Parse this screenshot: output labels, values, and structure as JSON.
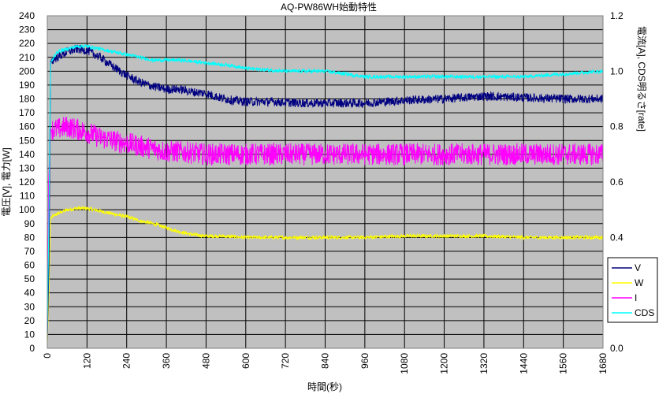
{
  "chart_data": {
    "type": "line",
    "title": "AQ-PW86WH始動特性",
    "xlabel": "時間(秒)",
    "ylabel_left": "電圧[V], 電力[W]",
    "ylabel_right": "電流[A], CDS明るさ[rate]",
    "xlim": [
      0,
      1680
    ],
    "xticks": [
      0,
      120,
      240,
      360,
      480,
      600,
      720,
      840,
      960,
      1080,
      1200,
      1320,
      1440,
      1560,
      1680
    ],
    "ylim_left": [
      0,
      240
    ],
    "yticks_left": [
      0,
      10,
      20,
      30,
      40,
      50,
      60,
      70,
      80,
      90,
      100,
      110,
      120,
      130,
      140,
      150,
      160,
      170,
      180,
      190,
      200,
      210,
      220,
      230,
      240
    ],
    "ylim_right": [
      0,
      1.2
    ],
    "yticks_right": [
      "0.0",
      "0.2",
      "0.4",
      "0.6",
      "0.8",
      "1.0",
      "1.2"
    ],
    "grid": true,
    "legend_position": "right",
    "plot_background": "#c0c0c0",
    "series": [
      {
        "name": "V",
        "axis": "left",
        "color": "#000080",
        "noise": 2,
        "points": [
          [
            0,
            5
          ],
          [
            5,
            60
          ],
          [
            10,
            207
          ],
          [
            30,
            210
          ],
          [
            60,
            214
          ],
          [
            90,
            216
          ],
          [
            120,
            215
          ],
          [
            160,
            210
          ],
          [
            200,
            203
          ],
          [
            240,
            197
          ],
          [
            280,
            192
          ],
          [
            320,
            189
          ],
          [
            360,
            187
          ],
          [
            400,
            187
          ],
          [
            440,
            185
          ],
          [
            480,
            184
          ],
          [
            520,
            181
          ],
          [
            560,
            179
          ],
          [
            600,
            178
          ],
          [
            680,
            178
          ],
          [
            760,
            177
          ],
          [
            840,
            177
          ],
          [
            920,
            177
          ],
          [
            960,
            177
          ],
          [
            1080,
            179
          ],
          [
            1200,
            180
          ],
          [
            1320,
            182
          ],
          [
            1440,
            181
          ],
          [
            1560,
            180
          ],
          [
            1680,
            180
          ]
        ]
      },
      {
        "name": "W",
        "axis": "left",
        "color": "#ffff00",
        "noise": 0.8,
        "points": [
          [
            0,
            3
          ],
          [
            5,
            40
          ],
          [
            10,
            94
          ],
          [
            30,
            97
          ],
          [
            60,
            100
          ],
          [
            90,
            101
          ],
          [
            120,
            101
          ],
          [
            160,
            99
          ],
          [
            200,
            97
          ],
          [
            240,
            95
          ],
          [
            280,
            92
          ],
          [
            320,
            90
          ],
          [
            360,
            87
          ],
          [
            400,
            84
          ],
          [
            440,
            82
          ],
          [
            480,
            81
          ],
          [
            520,
            81
          ],
          [
            600,
            80
          ],
          [
            720,
            80
          ],
          [
            840,
            80
          ],
          [
            960,
            80
          ],
          [
            1080,
            81
          ],
          [
            1200,
            81
          ],
          [
            1320,
            81
          ],
          [
            1440,
            80
          ],
          [
            1560,
            80
          ],
          [
            1680,
            80
          ]
        ]
      },
      {
        "name": "I",
        "axis": "right",
        "color": "#ff00ff",
        "noise": 0.025,
        "points": [
          [
            0,
            0.05
          ],
          [
            4,
            0.6
          ],
          [
            10,
            0.79
          ],
          [
            30,
            0.79
          ],
          [
            60,
            0.8
          ],
          [
            90,
            0.79
          ],
          [
            120,
            0.78
          ],
          [
            160,
            0.76
          ],
          [
            200,
            0.75
          ],
          [
            240,
            0.74
          ],
          [
            280,
            0.73
          ],
          [
            320,
            0.72
          ],
          [
            360,
            0.71
          ],
          [
            400,
            0.71
          ],
          [
            480,
            0.7
          ],
          [
            600,
            0.7
          ],
          [
            720,
            0.7
          ],
          [
            840,
            0.7
          ],
          [
            960,
            0.7
          ],
          [
            1080,
            0.7
          ],
          [
            1200,
            0.7
          ],
          [
            1320,
            0.7
          ],
          [
            1440,
            0.7
          ],
          [
            1560,
            0.7
          ],
          [
            1680,
            0.7
          ]
        ]
      },
      {
        "name": "CDS",
        "axis": "right",
        "color": "#00ffff",
        "noise": 0.004,
        "points": [
          [
            0,
            0.04
          ],
          [
            5,
            0.5
          ],
          [
            10,
            1.03
          ],
          [
            30,
            1.07
          ],
          [
            60,
            1.08
          ],
          [
            90,
            1.09
          ],
          [
            120,
            1.09
          ],
          [
            160,
            1.08
          ],
          [
            200,
            1.07
          ],
          [
            240,
            1.06
          ],
          [
            280,
            1.05
          ],
          [
            320,
            1.04
          ],
          [
            360,
            1.04
          ],
          [
            400,
            1.04
          ],
          [
            480,
            1.03
          ],
          [
            560,
            1.02
          ],
          [
            600,
            1.01
          ],
          [
            720,
            1.0
          ],
          [
            840,
            1.0
          ],
          [
            960,
            0.98
          ],
          [
            1080,
            0.98
          ],
          [
            1200,
            0.98
          ],
          [
            1320,
            0.98
          ],
          [
            1440,
            0.98
          ],
          [
            1560,
            0.99
          ],
          [
            1680,
            1.0
          ]
        ]
      }
    ]
  }
}
